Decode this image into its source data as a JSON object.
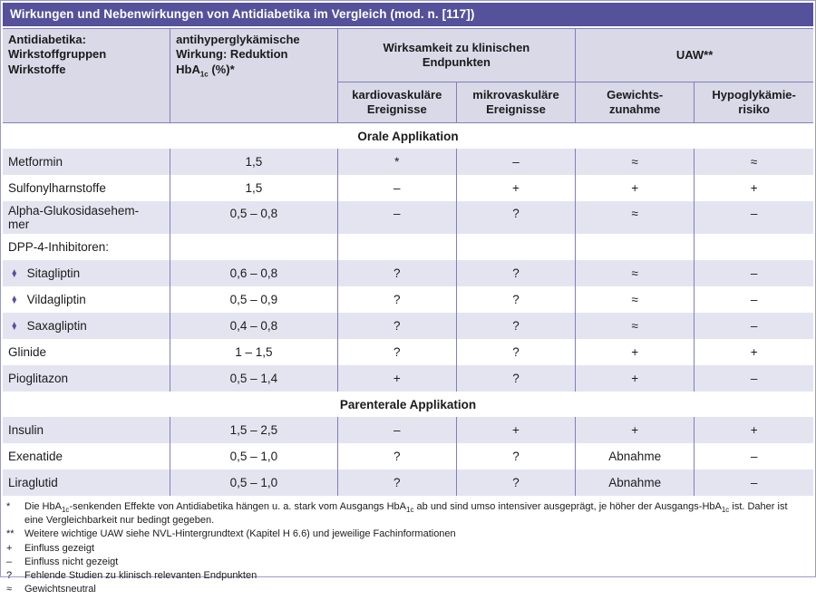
{
  "title": "Wirkungen und Nebenwirkungen von Antidiabetika im Vergleich (mod. n. [117])",
  "header": {
    "col_drug": "Antidiabetika:\nWirkstoffgruppen\nWirkstoffe",
    "col_effect": "antihyperglykämische\nWirkung: Reduktion\nHbA{1c} (%)*",
    "group_endpoints": "Wirksamkeit zu klinischen\nEndpunkten",
    "group_uaw": "UAW**",
    "sub_cardio": "kardiovaskuläre\nEreignisse",
    "sub_micro": "mikrovaskuläre\nEreignisse",
    "sub_weight": "Gewichts-\nzunahme",
    "sub_hypo": "Hypoglykämie-\nrisiko"
  },
  "sections": {
    "oral": "Orale Applikation",
    "parenteral": "Parenterale Applikation"
  },
  "rows": [
    {
      "bullet": "",
      "name": "Metformin",
      "hba1c": "1,5",
      "cardio": "*",
      "micro": "–",
      "weight": "≈",
      "hypo": "≈"
    },
    {
      "bullet": "",
      "name": "Sulfonylharnstoffe",
      "hba1c": "1,5",
      "cardio": "–",
      "micro": "+",
      "weight": "+",
      "hypo": "+"
    },
    {
      "bullet": "",
      "name": "Alpha-Glukosidasehem-\nmer",
      "hba1c": "0,5 – 0,8",
      "cardio": "–",
      "micro": "?",
      "weight": "≈",
      "hypo": "–"
    },
    {
      "bullet": "",
      "name": "DPP-4-Inhibitoren:",
      "hba1c": "",
      "cardio": "",
      "micro": "",
      "weight": "",
      "hypo": ""
    },
    {
      "bullet": "♦",
      "name": "Sitagliptin",
      "hba1c": "0,6 – 0,8",
      "cardio": "?",
      "micro": "?",
      "weight": "≈",
      "hypo": "–"
    },
    {
      "bullet": "♦",
      "name": "Vildagliptin",
      "hba1c": "0,5 – 0,9",
      "cardio": "?",
      "micro": "?",
      "weight": "≈",
      "hypo": "–"
    },
    {
      "bullet": "♦",
      "name": "Saxagliptin",
      "hba1c": "0,4 – 0,8",
      "cardio": "?",
      "micro": "?",
      "weight": "≈",
      "hypo": "–"
    },
    {
      "bullet": "",
      "name": "Glinide",
      "hba1c": "1 – 1,5",
      "cardio": "?",
      "micro": "?",
      "weight": "+",
      "hypo": "+"
    },
    {
      "bullet": "",
      "name": "Pioglitazon",
      "hba1c": "0,5 – 1,4",
      "cardio": "+",
      "micro": "?",
      "weight": "+",
      "hypo": "–"
    },
    {
      "bullet": "",
      "name": "Insulin",
      "hba1c": "1,5 – 2,5",
      "cardio": "–",
      "micro": "+",
      "weight": "+",
      "hypo": "+"
    },
    {
      "bullet": "",
      "name": "Exenatide",
      "hba1c": "0,5 – 1,0",
      "cardio": "?",
      "micro": "?",
      "weight": "Abnahme",
      "hypo": "–"
    },
    {
      "bullet": "",
      "name": "Liraglutid",
      "hba1c": "0,5 – 1,0",
      "cardio": "?",
      "micro": "?",
      "weight": "Abnahme",
      "hypo": "–"
    }
  ],
  "footnotes": [
    {
      "marker": "*",
      "text": "Die HbA{1c}-senkenden Effekte von Antidiabetika hängen u. a. stark vom Ausgangs HbA{1c} ab und sind umso intensiver ausgeprägt, je höher der Ausgangs-HbA{1c} ist. Daher ist eine Vergleichbarkeit nur bedingt gegeben."
    },
    {
      "marker": "**",
      "text": "Weitere wichtige UAW siehe NVL-Hintergrundtext (Kapitel H 6.6) und jeweilige Fachinformationen"
    },
    {
      "marker": "+",
      "text": "Einfluss gezeigt"
    },
    {
      "marker": "–",
      "text": "Einfluss nicht gezeigt"
    },
    {
      "marker": "?",
      "text": "Fehlende Studien zu klinisch relevanten Endpunkten"
    },
    {
      "marker": "≈",
      "text": "Gewichtsneutral"
    }
  ],
  "colors": {
    "title_bg": "#55519b",
    "title_text": "#ffffff",
    "header_bg": "#d9d9e8",
    "row_alt_bg": "#e4e4f1",
    "row_bg": "#ffffff",
    "grid_border": "#8080b8",
    "outer_border": "#9a9ac6",
    "bullet": "#55519b",
    "text": "#1b1b1b"
  }
}
